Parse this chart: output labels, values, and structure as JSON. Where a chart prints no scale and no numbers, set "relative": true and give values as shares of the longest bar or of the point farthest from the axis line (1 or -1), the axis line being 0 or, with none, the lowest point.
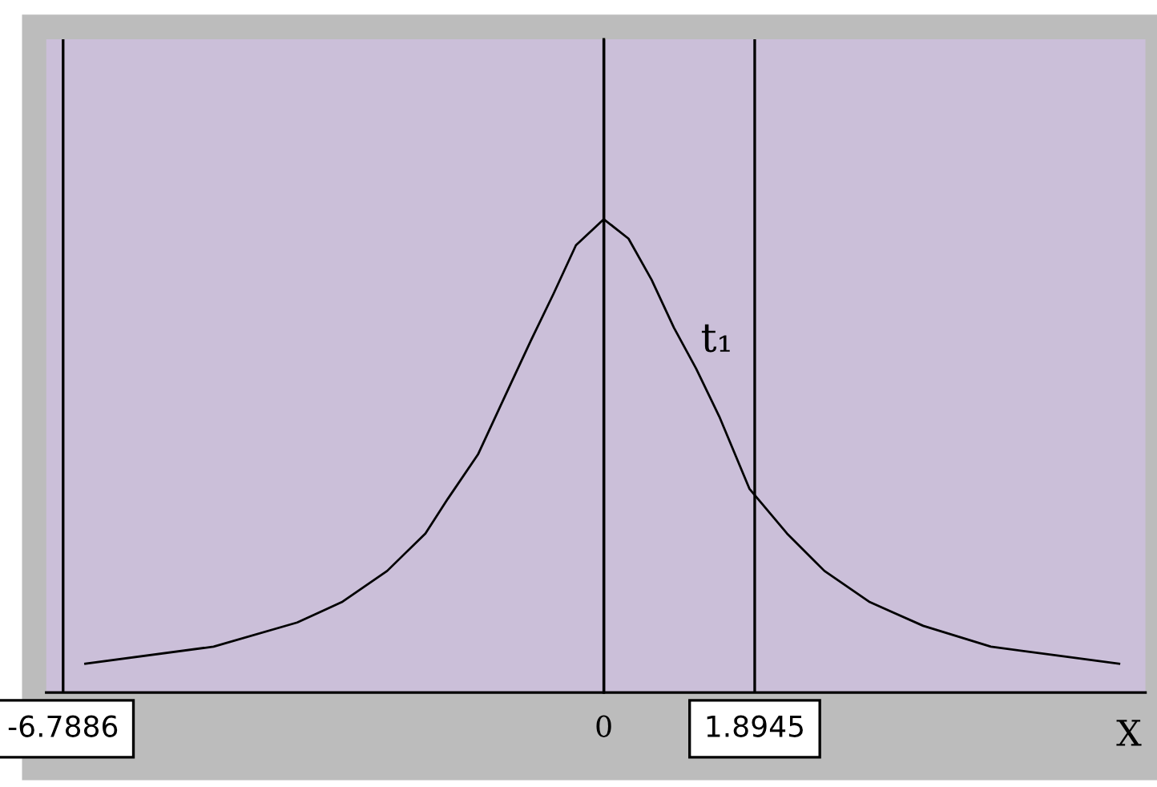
{
  "chart_data": {
    "type": "line",
    "relative": true,
    "xlabel": "X",
    "x": [
      -6.51,
      -4.9,
      -3.85,
      -3.29,
      -2.72,
      -2.24,
      -1.96,
      -1.58,
      -1.2,
      -0.92,
      -0.63,
      -0.35,
      0,
      0.31,
      0.6,
      0.88,
      1.16,
      1.45,
      1.83,
      2.3,
      2.77,
      3.34,
      4.01,
      4.86,
      5.71,
      6.47
    ],
    "series": [
      {
        "color": "#000000",
        "values": [
          0.061,
          0.097,
          0.148,
          0.191,
          0.257,
          0.336,
          0.409,
          0.503,
          0.641,
          0.742,
          0.843,
          0.945,
          1,
          0.959,
          0.872,
          0.771,
          0.684,
          0.583,
          0.43,
          0.336,
          0.257,
          0.191,
          0.141,
          0.097,
          0.078,
          0.061
        ]
      }
    ],
    "xlim": [
      -7.0,
      6.8
    ],
    "xticks": [
      -6.7886,
      0,
      1.8945
    ],
    "annotations": [
      {
        "text": "t₁",
        "x": 1.16,
        "y": 0.684
      }
    ],
    "grid": "x",
    "marker": "none",
    "line_style": "solid"
  }
}
